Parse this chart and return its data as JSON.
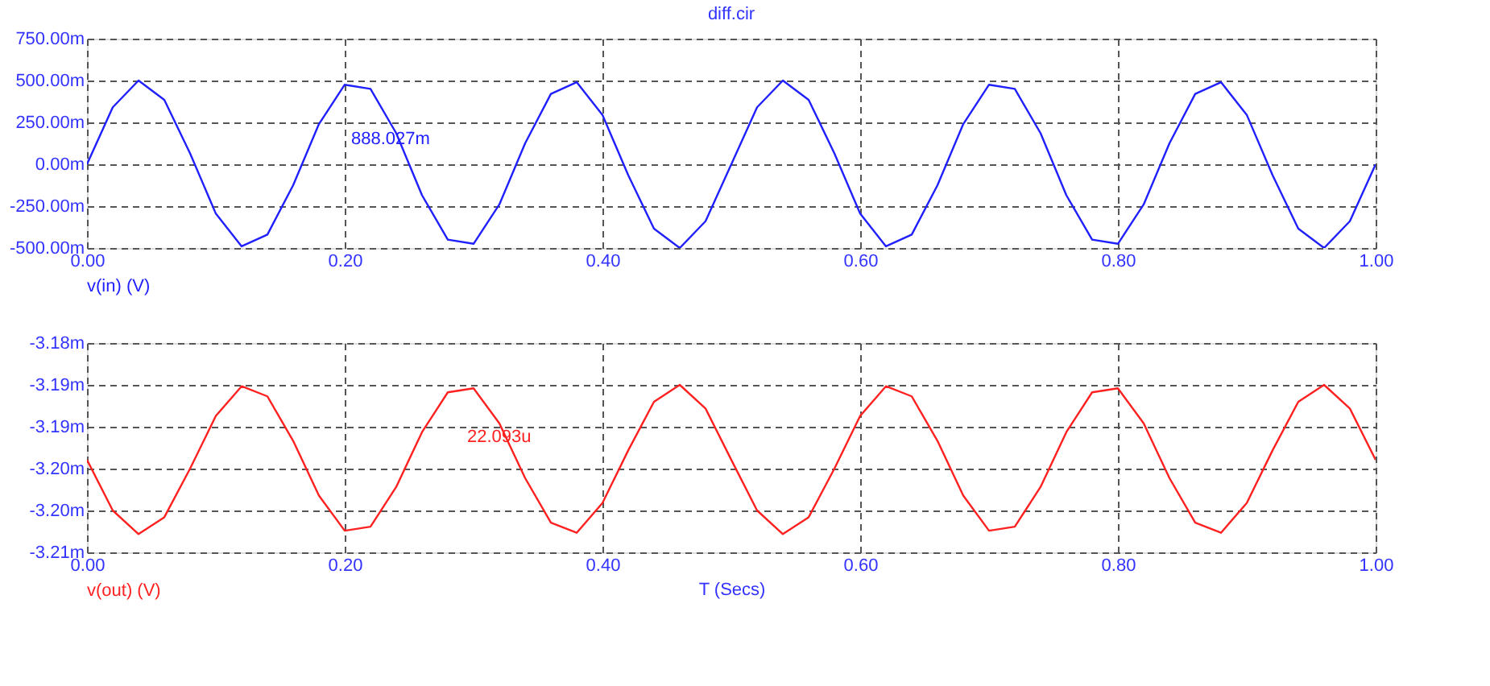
{
  "chart_data": [
    {
      "type": "line",
      "title": "diff.cir",
      "x": [
        0,
        0.02,
        0.04,
        0.06,
        0.08,
        0.1,
        0.12,
        0.14,
        0.16,
        0.18,
        0.2,
        0.22,
        0.24,
        0.26,
        0.28,
        0.3,
        0.32,
        0.34,
        0.36,
        0.38,
        0.4,
        0.42,
        0.44,
        0.46,
        0.48,
        0.5,
        0.52,
        0.54,
        0.56,
        0.58,
        0.6,
        0.62,
        0.64,
        0.66,
        0.68,
        0.7,
        0.72,
        0.74,
        0.76,
        0.78,
        0.8,
        0.82,
        0.84,
        0.86,
        0.88,
        0.9,
        0.92,
        0.94,
        0.96,
        0.98,
        1
      ],
      "series": [
        {
          "name": "v(in) (V)",
          "color": "#2020ff",
          "values": [
            0,
            340,
            500,
            385,
            65,
            -295,
            -490,
            -420,
            -125,
            240,
            475,
            450,
            185,
            -185,
            -450,
            -475,
            -240,
            125,
            420,
            490,
            295,
            -65,
            -385,
            -500,
            -340,
            0,
            340,
            500,
            385,
            65,
            -295,
            -490,
            -420,
            -125,
            240,
            475,
            450,
            185,
            -185,
            -450,
            -475,
            -240,
            125,
            420,
            490,
            295,
            -65,
            -385,
            -500,
            -340,
            0
          ]
        }
      ],
      "xlim": [
        0,
        1
      ],
      "xticks": [
        {
          "value": 0,
          "label": "0.00"
        },
        {
          "value": 0.2,
          "label": "0.20"
        },
        {
          "value": 0.4,
          "label": "0.40"
        },
        {
          "value": 0.6,
          "label": "0.60"
        },
        {
          "value": 0.8,
          "label": "0.80"
        },
        {
          "value": 1,
          "label": "1.00"
        }
      ],
      "ylim": [
        -500,
        750
      ],
      "yticks": [
        {
          "value": -500,
          "label": "-500.00m"
        },
        {
          "value": -250,
          "label": "-250.00m"
        },
        {
          "value": 0,
          "label": "0.00m"
        },
        {
          "value": 250,
          "label": "250.00m"
        },
        {
          "value": 500,
          "label": "500.00m"
        },
        {
          "value": 750,
          "label": "750.00m"
        }
      ],
      "grid": true,
      "line_style": "solid",
      "marker": "none",
      "annotations": [
        "888.027m"
      ]
    },
    {
      "type": "line",
      "xlabel": "T (Secs)",
      "x": [
        0,
        0.02,
        0.04,
        0.06,
        0.08,
        0.1,
        0.12,
        0.14,
        0.16,
        0.18,
        0.2,
        0.22,
        0.24,
        0.26,
        0.28,
        0.3,
        0.32,
        0.34,
        0.36,
        0.38,
        0.4,
        0.42,
        0.44,
        0.46,
        0.48,
        0.5,
        0.52,
        0.54,
        0.56,
        0.58,
        0.6,
        0.62,
        0.64,
        0.66,
        0.68,
        0.7,
        0.72,
        0.74,
        0.76,
        0.78,
        0.8,
        0.82,
        0.84,
        0.86,
        0.88,
        0.9,
        0.92,
        0.94,
        0.96,
        0.98,
        1
      ],
      "series": [
        {
          "name": "v(out) (V)",
          "color": "#ff2020",
          "values": [
            -3.1973,
            -3.2048,
            -3.2083,
            -3.2058,
            -3.1986,
            -3.1908,
            -3.1864,
            -3.1879,
            -3.1945,
            -3.2026,
            -3.2078,
            -3.2072,
            -3.2013,
            -3.1932,
            -3.1873,
            -3.1867,
            -3.1919,
            -3.2,
            -3.2066,
            -3.2081,
            -3.2037,
            -3.1959,
            -3.1887,
            -3.1862,
            -3.1897,
            -3.1973,
            -3.2048,
            -3.2083,
            -3.2058,
            -3.1986,
            -3.1908,
            -3.1864,
            -3.1879,
            -3.1945,
            -3.2026,
            -3.2078,
            -3.2072,
            -3.2013,
            -3.1932,
            -3.1873,
            -3.1867,
            -3.1919,
            -3.2,
            -3.2066,
            -3.2081,
            -3.2037,
            -3.1959,
            -3.1887,
            -3.1862,
            -3.1897,
            -3.1973
          ]
        }
      ],
      "xlim": [
        0,
        1
      ],
      "xticks": [
        {
          "value": 0,
          "label": "0.00"
        },
        {
          "value": 0.2,
          "label": "0.20"
        },
        {
          "value": 0.4,
          "label": "0.40"
        },
        {
          "value": 0.6,
          "label": "0.60"
        },
        {
          "value": 0.8,
          "label": "0.80"
        },
        {
          "value": 1,
          "label": "1.00"
        }
      ],
      "ylim": [
        -3.211,
        -3.18
      ],
      "yticks": [
        {
          "value": -3.211,
          "label": "-3.21m"
        },
        {
          "value": -3.2048,
          "label": "-3.20m"
        },
        {
          "value": -3.1986,
          "label": "-3.20m"
        },
        {
          "value": -3.1924,
          "label": "-3.19m"
        },
        {
          "value": -3.1862,
          "label": "-3.19m"
        },
        {
          "value": -3.18,
          "label": "-3.18m"
        }
      ],
      "grid": true,
      "line_style": "solid",
      "marker": "none",
      "annotations": [
        "22.093u"
      ]
    }
  ]
}
